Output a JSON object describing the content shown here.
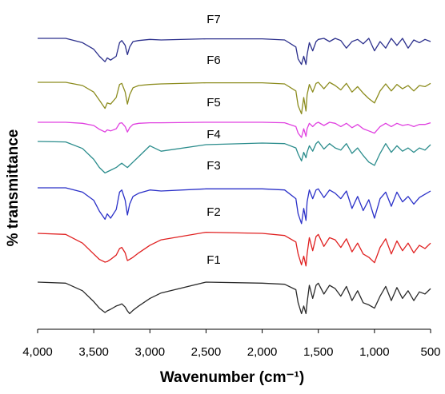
{
  "chart_data": {
    "type": "line",
    "title": "",
    "xlabel": "Wavenumber (cm⁻¹)",
    "ylabel": "% transmittance",
    "xlim": [
      4000,
      500
    ],
    "x_reversed": true,
    "x_ticks": [
      4000,
      3500,
      3000,
      2500,
      2000,
      1500,
      1000,
      500
    ],
    "x_tick_labels": [
      "4,000",
      "3,500",
      "3,000",
      "2,500",
      "2,000",
      "1,500",
      "1,000",
      "500"
    ],
    "y_ticks_shown": false,
    "y_units": "relative transmittance (offset per series)",
    "grid": false,
    "legend": "none (series labelled directly above each trace)",
    "series": [
      {
        "name": "F7",
        "color": "#2b2f8c",
        "x": [
          4000,
          3750,
          3600,
          3500,
          3450,
          3400,
          3380,
          3350,
          3300,
          3270,
          3250,
          3220,
          3200,
          3180,
          3150,
          3100,
          3000,
          2900,
          2500,
          2000,
          1800,
          1700,
          1680,
          1650,
          1630,
          1610,
          1600,
          1580,
          1550,
          1520,
          1500,
          1450,
          1400,
          1350,
          1300,
          1250,
          1200,
          1150,
          1100,
          1050,
          1000,
          950,
          900,
          850,
          800,
          750,
          700,
          650,
          600,
          550,
          500
        ],
        "y": [
          0.78,
          0.78,
          0.7,
          0.58,
          0.45,
          0.35,
          0.42,
          0.38,
          0.45,
          0.7,
          0.74,
          0.65,
          0.48,
          0.62,
          0.72,
          0.74,
          0.76,
          0.75,
          0.77,
          0.77,
          0.75,
          0.62,
          0.4,
          0.3,
          0.45,
          0.3,
          0.48,
          0.7,
          0.55,
          0.72,
          0.76,
          0.78,
          0.72,
          0.78,
          0.74,
          0.6,
          0.72,
          0.76,
          0.68,
          0.78,
          0.55,
          0.72,
          0.6,
          0.78,
          0.65,
          0.78,
          0.6,
          0.75,
          0.7,
          0.76,
          0.72
        ]
      },
      {
        "name": "F6",
        "color": "#8c8c1e",
        "x": [
          4000,
          3750,
          3600,
          3500,
          3450,
          3400,
          3380,
          3350,
          3300,
          3270,
          3250,
          3220,
          3200,
          3180,
          3150,
          3100,
          3000,
          2900,
          2500,
          2000,
          1800,
          1700,
          1680,
          1650,
          1630,
          1610,
          1600,
          1580,
          1550,
          1520,
          1500,
          1450,
          1400,
          1350,
          1300,
          1250,
          1200,
          1150,
          1100,
          1050,
          1000,
          950,
          900,
          850,
          800,
          750,
          700,
          650,
          600,
          550,
          500
        ],
        "y": [
          0.78,
          0.78,
          0.72,
          0.6,
          0.45,
          0.3,
          0.4,
          0.38,
          0.5,
          0.74,
          0.76,
          0.6,
          0.38,
          0.55,
          0.68,
          0.72,
          0.74,
          0.75,
          0.77,
          0.77,
          0.75,
          0.62,
          0.35,
          0.2,
          0.5,
          0.25,
          0.55,
          0.74,
          0.6,
          0.76,
          0.78,
          0.66,
          0.78,
          0.72,
          0.64,
          0.76,
          0.6,
          0.7,
          0.58,
          0.48,
          0.4,
          0.62,
          0.75,
          0.62,
          0.74,
          0.66,
          0.72,
          0.62,
          0.72,
          0.7,
          0.76
        ]
      },
      {
        "name": "F5",
        "color": "#e040e0",
        "x": [
          4000,
          3750,
          3600,
          3500,
          3450,
          3400,
          3380,
          3350,
          3300,
          3270,
          3250,
          3220,
          3200,
          3180,
          3150,
          3100,
          3000,
          2900,
          2500,
          2000,
          1800,
          1700,
          1680,
          1650,
          1630,
          1610,
          1600,
          1580,
          1550,
          1520,
          1500,
          1450,
          1400,
          1350,
          1300,
          1250,
          1200,
          1150,
          1100,
          1050,
          1000,
          950,
          900,
          850,
          800,
          750,
          700,
          650,
          600,
          550,
          500
        ],
        "y": [
          0.78,
          0.78,
          0.76,
          0.72,
          0.65,
          0.6,
          0.64,
          0.62,
          0.66,
          0.76,
          0.77,
          0.7,
          0.6,
          0.68,
          0.74,
          0.76,
          0.77,
          0.77,
          0.78,
          0.78,
          0.77,
          0.7,
          0.58,
          0.5,
          0.66,
          0.52,
          0.66,
          0.76,
          0.7,
          0.76,
          0.78,
          0.72,
          0.78,
          0.76,
          0.7,
          0.76,
          0.68,
          0.74,
          0.66,
          0.62,
          0.58,
          0.7,
          0.76,
          0.7,
          0.76,
          0.72,
          0.74,
          0.7,
          0.74,
          0.74,
          0.77
        ]
      },
      {
        "name": "F4",
        "color": "#2a8c8c",
        "x": [
          4000,
          3750,
          3600,
          3500,
          3450,
          3400,
          3380,
          3350,
          3300,
          3270,
          3250,
          3220,
          3200,
          3180,
          3150,
          3100,
          3000,
          2900,
          2500,
          2000,
          1800,
          1700,
          1680,
          1650,
          1630,
          1610,
          1600,
          1580,
          1550,
          1520,
          1500,
          1450,
          1400,
          1350,
          1300,
          1250,
          1200,
          1150,
          1100,
          1050,
          1000,
          950,
          900,
          850,
          800,
          750,
          700,
          650,
          600,
          550,
          500
        ],
        "y": [
          0.78,
          0.77,
          0.65,
          0.45,
          0.3,
          0.2,
          0.22,
          0.25,
          0.3,
          0.35,
          0.38,
          0.33,
          0.3,
          0.34,
          0.4,
          0.5,
          0.7,
          0.6,
          0.72,
          0.75,
          0.74,
          0.66,
          0.55,
          0.42,
          0.58,
          0.48,
          0.58,
          0.7,
          0.6,
          0.74,
          0.78,
          0.64,
          0.74,
          0.66,
          0.62,
          0.74,
          0.56,
          0.66,
          0.52,
          0.4,
          0.34,
          0.56,
          0.74,
          0.58,
          0.7,
          0.6,
          0.66,
          0.58,
          0.66,
          0.62,
          0.72
        ]
      },
      {
        "name": "F3",
        "color": "#2a30c8",
        "x": [
          4000,
          3750,
          3600,
          3500,
          3450,
          3400,
          3380,
          3350,
          3300,
          3270,
          3250,
          3220,
          3200,
          3180,
          3150,
          3100,
          3000,
          2900,
          2500,
          2000,
          1800,
          1700,
          1680,
          1650,
          1630,
          1610,
          1600,
          1580,
          1550,
          1520,
          1500,
          1450,
          1400,
          1350,
          1300,
          1250,
          1200,
          1150,
          1100,
          1050,
          1000,
          950,
          900,
          850,
          800,
          750,
          700,
          650,
          600,
          550,
          500
        ],
        "y": [
          0.78,
          0.78,
          0.7,
          0.55,
          0.35,
          0.2,
          0.3,
          0.22,
          0.38,
          0.7,
          0.74,
          0.55,
          0.28,
          0.48,
          0.62,
          0.68,
          0.74,
          0.72,
          0.76,
          0.76,
          0.74,
          0.58,
          0.3,
          0.12,
          0.4,
          0.18,
          0.52,
          0.74,
          0.58,
          0.74,
          0.76,
          0.6,
          0.74,
          0.68,
          0.58,
          0.72,
          0.4,
          0.62,
          0.36,
          0.56,
          0.22,
          0.58,
          0.7,
          0.44,
          0.7,
          0.52,
          0.62,
          0.48,
          0.6,
          0.66,
          0.72
        ]
      },
      {
        "name": "F2",
        "color": "#e02020",
        "x": [
          4000,
          3750,
          3600,
          3500,
          3450,
          3400,
          3380,
          3350,
          3300,
          3270,
          3250,
          3220,
          3200,
          3180,
          3150,
          3100,
          3000,
          2900,
          2500,
          2000,
          1800,
          1700,
          1680,
          1650,
          1630,
          1610,
          1600,
          1580,
          1550,
          1520,
          1500,
          1450,
          1400,
          1350,
          1300,
          1250,
          1200,
          1150,
          1100,
          1050,
          1000,
          950,
          900,
          850,
          800,
          750,
          700,
          650,
          600,
          550,
          500
        ],
        "y": [
          0.78,
          0.76,
          0.6,
          0.4,
          0.3,
          0.25,
          0.26,
          0.3,
          0.38,
          0.5,
          0.52,
          0.42,
          0.28,
          0.3,
          0.34,
          0.42,
          0.56,
          0.66,
          0.8,
          0.78,
          0.74,
          0.62,
          0.4,
          0.2,
          0.36,
          0.18,
          0.4,
          0.7,
          0.46,
          0.72,
          0.76,
          0.54,
          0.7,
          0.66,
          0.52,
          0.68,
          0.44,
          0.6,
          0.4,
          0.34,
          0.24,
          0.52,
          0.68,
          0.4,
          0.64,
          0.46,
          0.6,
          0.42,
          0.56,
          0.5,
          0.6
        ]
      },
      {
        "name": "F1",
        "color": "#2a2a2a",
        "x": [
          4000,
          3750,
          3600,
          3500,
          3450,
          3400,
          3380,
          3350,
          3300,
          3270,
          3250,
          3220,
          3200,
          3180,
          3150,
          3100,
          3000,
          2900,
          2500,
          2000,
          1800,
          1700,
          1680,
          1650,
          1630,
          1610,
          1600,
          1580,
          1550,
          1520,
          1500,
          1450,
          1400,
          1350,
          1300,
          1250,
          1200,
          1150,
          1100,
          1050,
          1000,
          950,
          900,
          850,
          800,
          750,
          700,
          650,
          600,
          550,
          500
        ],
        "y": [
          0.78,
          0.76,
          0.62,
          0.42,
          0.3,
          0.22,
          0.25,
          0.28,
          0.34,
          0.36,
          0.38,
          0.32,
          0.25,
          0.2,
          0.26,
          0.34,
          0.48,
          0.58,
          0.78,
          0.76,
          0.74,
          0.64,
          0.4,
          0.2,
          0.34,
          0.2,
          0.4,
          0.72,
          0.48,
          0.72,
          0.76,
          0.56,
          0.72,
          0.66,
          0.52,
          0.7,
          0.44,
          0.62,
          0.4,
          0.36,
          0.3,
          0.52,
          0.7,
          0.44,
          0.68,
          0.48,
          0.62,
          0.44,
          0.6,
          0.56,
          0.66
        ]
      }
    ]
  }
}
